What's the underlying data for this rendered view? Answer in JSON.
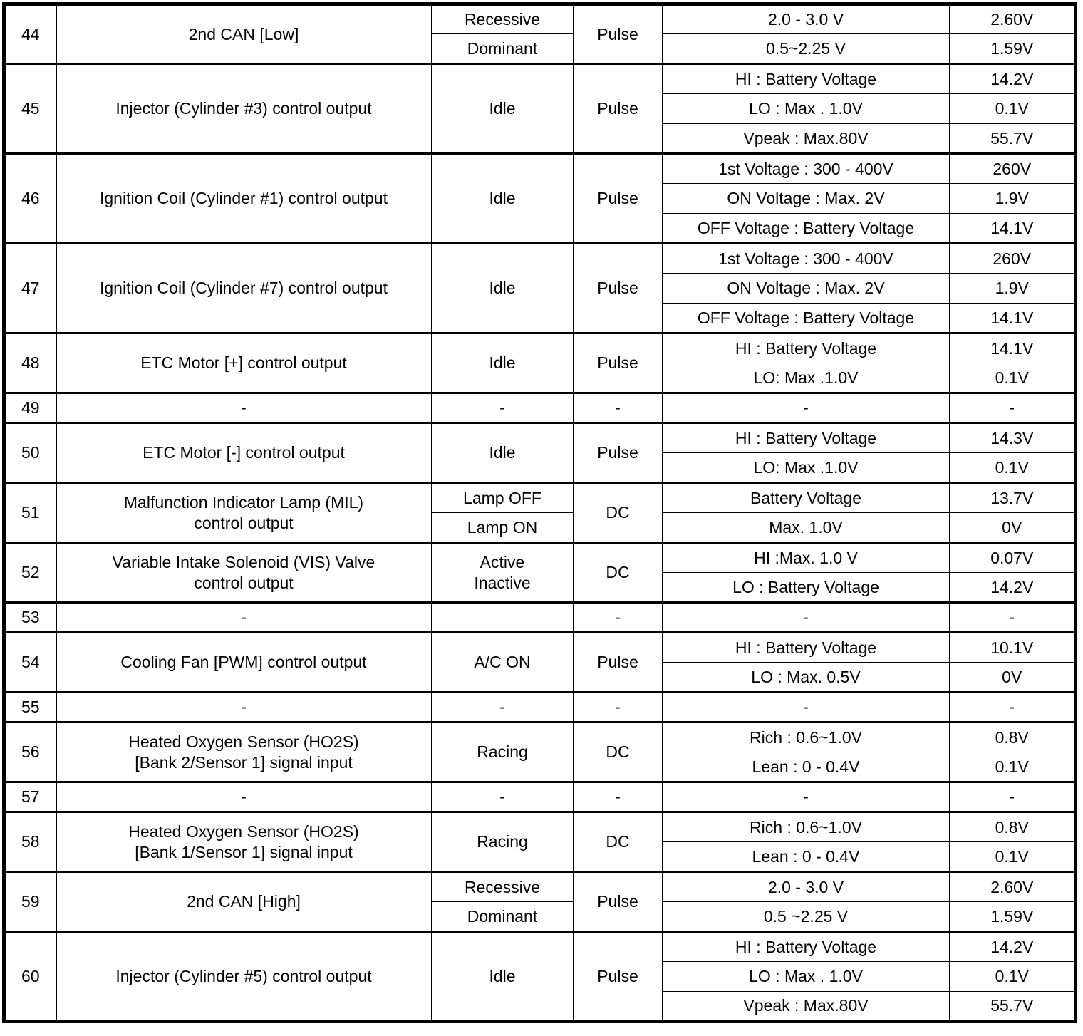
{
  "table": {
    "rows": [
      {
        "num": "44",
        "desc": "2nd CAN [Low]",
        "cond_mode": "split",
        "conds": [
          "Recessive",
          "Dominant"
        ],
        "type": "Pulse",
        "specs": [
          "2.0 - 3.0 V",
          "0.5~2.25 V"
        ],
        "values": [
          "2.60V",
          "1.59V"
        ]
      },
      {
        "num": "45",
        "desc": "Injector (Cylinder #3) control output",
        "cond_mode": "span",
        "conds": [
          "Idle"
        ],
        "type": "Pulse",
        "specs": [
          "HI : Battery Voltage",
          "LO : Max . 1.0V",
          "Vpeak : Max.80V"
        ],
        "values": [
          "14.2V",
          "0.1V",
          "55.7V"
        ]
      },
      {
        "num": "46",
        "desc": "Ignition Coil (Cylinder #1) control output",
        "cond_mode": "span",
        "conds": [
          "Idle"
        ],
        "type": "Pulse",
        "specs": [
          "1st Voltage : 300 - 400V",
          "ON Voltage : Max. 2V",
          "OFF Voltage : Battery Voltage"
        ],
        "values": [
          "260V",
          "1.9V",
          "14.1V"
        ]
      },
      {
        "num": "47",
        "desc": "Ignition Coil (Cylinder #7) control output",
        "cond_mode": "span",
        "conds": [
          "Idle"
        ],
        "type": "Pulse",
        "specs": [
          "1st Voltage : 300 - 400V",
          "ON Voltage : Max. 2V",
          "OFF Voltage : Battery Voltage"
        ],
        "values": [
          "260V",
          "1.9V",
          "14.1V"
        ]
      },
      {
        "num": "48",
        "desc": "ETC Motor [+] control output",
        "cond_mode": "span",
        "conds": [
          "Idle"
        ],
        "type": "Pulse",
        "specs": [
          "HI : Battery Voltage",
          "LO: Max .1.0V"
        ],
        "values": [
          "14.1V",
          "0.1V"
        ]
      },
      {
        "num": "49",
        "desc": "-",
        "cond_mode": "span",
        "conds": [
          "-"
        ],
        "type": "-",
        "specs": [
          "-"
        ],
        "values": [
          "-"
        ]
      },
      {
        "num": "50",
        "desc": "ETC Motor [-] control output",
        "cond_mode": "span",
        "conds": [
          "Idle"
        ],
        "type": "Pulse",
        "specs": [
          "HI : Battery Voltage",
          "LO: Max .1.0V"
        ],
        "values": [
          "14.3V",
          "0.1V"
        ]
      },
      {
        "num": "51",
        "desc": "Malfunction Indicator Lamp (MIL)\ncontrol output",
        "cond_mode": "split",
        "conds": [
          "Lamp OFF",
          "Lamp ON"
        ],
        "type": "DC",
        "specs": [
          "Battery Voltage",
          "Max. 1.0V"
        ],
        "values": [
          "13.7V",
          "0V"
        ]
      },
      {
        "num": "52",
        "desc": "Variable Intake Solenoid (VIS) Valve\ncontrol output",
        "cond_mode": "span",
        "conds": [
          "Active\nInactive"
        ],
        "type": "DC",
        "specs": [
          "HI :Max. 1.0 V",
          "LO : Battery Voltage"
        ],
        "values": [
          "0.07V",
          "14.2V"
        ]
      },
      {
        "num": "53",
        "desc": "-",
        "cond_mode": "span",
        "conds": [
          ""
        ],
        "type": "-",
        "specs": [
          "-"
        ],
        "values": [
          "-"
        ]
      },
      {
        "num": "54",
        "desc": "Cooling Fan [PWM] control output",
        "cond_mode": "span",
        "conds": [
          "A/C ON"
        ],
        "type": "Pulse",
        "specs": [
          "HI : Battery Voltage",
          "LO : Max. 0.5V"
        ],
        "values": [
          "10.1V",
          "0V"
        ]
      },
      {
        "num": "55",
        "desc": "-",
        "cond_mode": "span",
        "conds": [
          "-"
        ],
        "type": "-",
        "specs": [
          "-"
        ],
        "values": [
          "-"
        ]
      },
      {
        "num": "56",
        "desc": "Heated Oxygen Sensor (HO2S)\n[Bank 2/Sensor 1] signal input",
        "cond_mode": "span",
        "conds": [
          "Racing"
        ],
        "type": "DC",
        "specs": [
          "Rich : 0.6~1.0V",
          "Lean : 0 - 0.4V"
        ],
        "values": [
          "0.8V",
          "0.1V"
        ]
      },
      {
        "num": "57",
        "desc": "-",
        "cond_mode": "span",
        "conds": [
          "-"
        ],
        "type": "-",
        "specs": [
          "-"
        ],
        "values": [
          "-"
        ]
      },
      {
        "num": "58",
        "desc": "Heated Oxygen Sensor (HO2S)\n[Bank 1/Sensor 1] signal input",
        "cond_mode": "span",
        "conds": [
          "Racing"
        ],
        "type": "DC",
        "specs": [
          "Rich : 0.6~1.0V",
          "Lean : 0 - 0.4V"
        ],
        "values": [
          "0.8V",
          "0.1V"
        ]
      },
      {
        "num": "59",
        "desc": "2nd CAN [High]",
        "cond_mode": "split",
        "conds": [
          "Recessive",
          "Dominant"
        ],
        "type": "Pulse",
        "specs": [
          "2.0 - 3.0 V",
          "0.5 ~2.25 V"
        ],
        "values": [
          "2.60V",
          "1.59V"
        ]
      },
      {
        "num": "60",
        "desc": "Injector (Cylinder #5) control output",
        "cond_mode": "span",
        "conds": [
          "Idle"
        ],
        "type": "Pulse",
        "specs": [
          "HI : Battery Voltage",
          "LO : Max . 1.0V",
          "Vpeak : Max.80V"
        ],
        "values": [
          "14.2V",
          "0.1V",
          "55.7V"
        ]
      }
    ]
  }
}
